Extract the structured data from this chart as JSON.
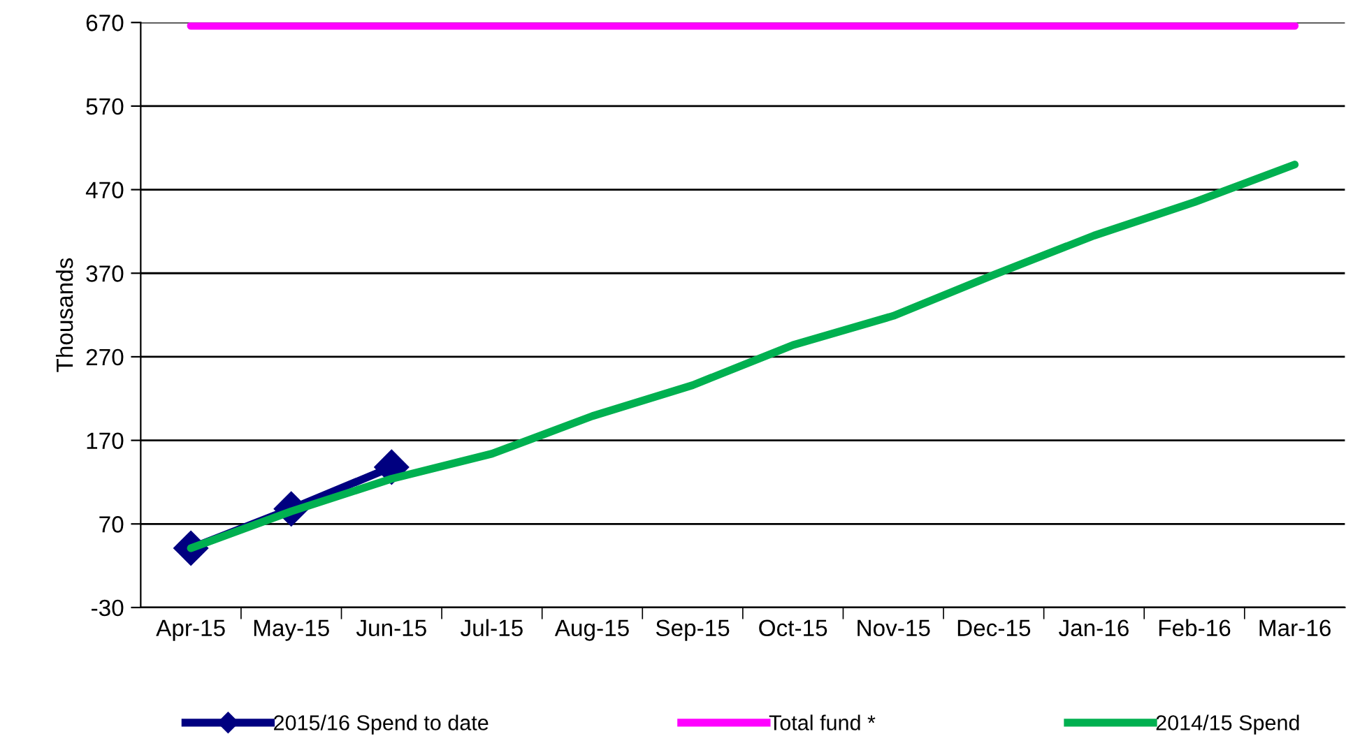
{
  "chart_data": {
    "type": "line",
    "ylabel": "Thousands",
    "categories": [
      "Apr-15",
      "May-15",
      "Jun-15",
      "Jul-15",
      "Aug-15",
      "Sep-15",
      "Oct-15",
      "Nov-15",
      "Dec-15",
      "Jan-16",
      "Feb-16",
      "Mar-16"
    ],
    "series": [
      {
        "name": "2015/16 Spend to date",
        "color": "#000080",
        "marker": "diamond",
        "values": [
          41,
          88,
          138,
          null,
          null,
          null,
          null,
          null,
          null,
          null,
          null,
          null
        ]
      },
      {
        "name": "Total fund *",
        "color": "#ff00ff",
        "values": [
          666,
          666,
          666,
          666,
          666,
          666,
          666,
          666,
          666,
          666,
          666,
          666
        ]
      },
      {
        "name": "2014/15 Spend",
        "color": "#00b050",
        "values": [
          41,
          85,
          124,
          154,
          199,
          236,
          284,
          319,
          368,
          415,
          455,
          500
        ]
      }
    ],
    "ylim": [
      -30,
      670
    ],
    "yticks": [
      -30,
      70,
      170,
      270,
      370,
      470,
      570,
      670
    ],
    "grid": "y",
    "legend": "bottom"
  }
}
